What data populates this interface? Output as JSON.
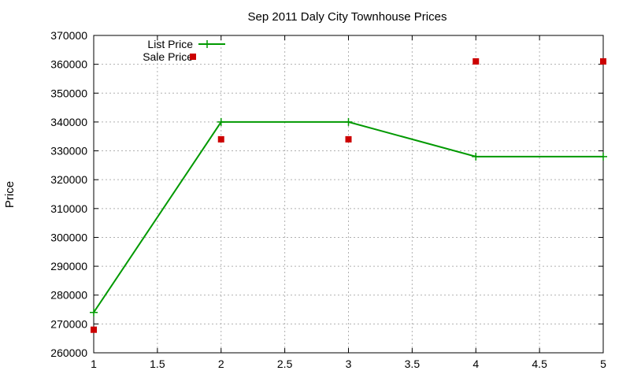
{
  "chart_data": {
    "type": "line",
    "title": "Sep 2011 Daly City Townhouse Prices",
    "xlabel": "",
    "ylabel": "Price",
    "xlim": [
      1,
      5
    ],
    "ylim": [
      260000,
      370000
    ],
    "xticks": [
      1,
      1.5,
      2,
      2.5,
      3,
      3.5,
      4,
      4.5,
      5
    ],
    "xtick_labels": [
      "1",
      "1.5",
      "2",
      "2.5",
      "3",
      "3.5",
      "4",
      "4.5",
      "5"
    ],
    "yticks": [
      260000,
      270000,
      280000,
      290000,
      300000,
      310000,
      320000,
      330000,
      340000,
      350000,
      360000,
      370000
    ],
    "ytick_labels": [
      "260000",
      "270000",
      "280000",
      "290000",
      "300000",
      "310000",
      "320000",
      "330000",
      "340000",
      "350000",
      "360000",
      "370000"
    ],
    "grid": true,
    "legend_position": "top-left",
    "series": [
      {
        "name": "List Price",
        "style": "line-points",
        "marker": "plus",
        "color": "#009900",
        "x": [
          1,
          2,
          3,
          4,
          5
        ],
        "y": [
          274000,
          340000,
          340000,
          328000,
          328000
        ]
      },
      {
        "name": "Sale Price",
        "style": "points",
        "marker": "square",
        "color": "#cc0000",
        "x": [
          1,
          2,
          3,
          4,
          5
        ],
        "y": [
          268000,
          334000,
          334000,
          361000,
          361000
        ]
      }
    ]
  }
}
